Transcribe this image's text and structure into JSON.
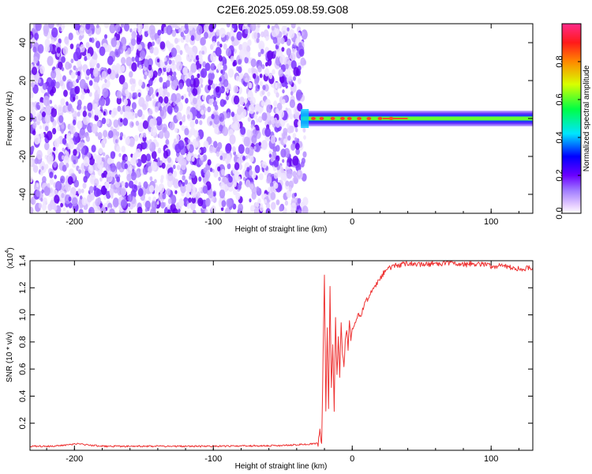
{
  "title": "C2E6.2025.059.08.59.G08",
  "chart_data": [
    {
      "type": "heatmap",
      "xlabel": "Height of straight line (km)",
      "ylabel": "Frequency (Hz)",
      "xlim": [
        -232,
        130
      ],
      "ylim": [
        -50,
        50
      ],
      "xticks": [
        -200,
        -100,
        0,
        100
      ],
      "yticks": [
        -40,
        -20,
        0,
        20,
        40
      ],
      "xtick_labels": [
        "-200",
        "-100",
        "0",
        "100"
      ],
      "ytick_labels": [
        "-40",
        "-20",
        "0",
        "20",
        "40"
      ],
      "grid": false,
      "noise_region_x": [
        -232,
        -37
      ],
      "signal_line_frequency_hz": 0,
      "signal_line_x": [
        -37,
        130
      ],
      "colorbar": {
        "label": "Normalized spectral amplitude",
        "range": [
          0,
          1
        ],
        "ticks": [
          0.0,
          0.2,
          0.4,
          0.6,
          0.8
        ],
        "tick_labels": [
          "0.0",
          "0.2",
          "0.4",
          "0.6",
          "0.8"
        ],
        "colormap": "rainbow-purple-to-red"
      }
    },
    {
      "type": "line",
      "xlabel": "Height of straight line (km)",
      "ylabel": "SNR (10 * v/v)",
      "multiplier_label": "(x10",
      "multiplier_exponent": "4",
      "xlim": [
        -232,
        130
      ],
      "ylim": [
        0,
        1.4
      ],
      "xticks": [
        -200,
        -100,
        0,
        100
      ],
      "yticks": [
        0.2,
        0.4,
        0.6,
        0.8,
        1.0,
        1.2,
        1.4
      ],
      "xtick_labels": [
        "-200",
        "-100",
        "0",
        "100"
      ],
      "ytick_labels": [
        "0.2",
        "0.4",
        "0.6",
        "0.8",
        "1.0",
        "1.2",
        "1.4"
      ],
      "grid": false,
      "color": "#ee3333",
      "series": [
        {
          "x": [
            -232,
            -215,
            -205,
            -198,
            -192,
            -180,
            -150,
            -100,
            -50,
            -25,
            -22,
            -20,
            -19,
            -18,
            -17,
            -16,
            -15,
            -14,
            -13,
            -12,
            -11,
            -10,
            -9,
            -8,
            -7,
            -6,
            -5,
            -4,
            -3,
            -2,
            -1,
            0,
            2,
            4,
            6,
            8,
            10,
            12,
            14,
            16,
            18,
            20,
            22,
            25,
            30,
            35,
            40,
            50,
            60,
            70,
            80,
            90,
            100,
            110,
            120,
            130
          ],
          "y": [
            0.03,
            0.03,
            0.04,
            0.05,
            0.04,
            0.03,
            0.03,
            0.03,
            0.035,
            0.05,
            0.12,
            1.3,
            0.35,
            0.9,
            0.25,
            1.22,
            0.4,
            0.8,
            0.3,
            1.0,
            0.5,
            0.85,
            0.55,
            0.95,
            0.7,
            0.62,
            0.8,
            0.9,
            0.75,
            0.95,
            0.82,
            0.88,
            0.93,
            1.0,
            0.98,
            1.05,
            1.1,
            1.13,
            1.18,
            1.2,
            1.24,
            1.27,
            1.3,
            1.34,
            1.36,
            1.37,
            1.38,
            1.37,
            1.38,
            1.38,
            1.37,
            1.38,
            1.36,
            1.36,
            1.34,
            1.35
          ]
        }
      ]
    }
  ]
}
